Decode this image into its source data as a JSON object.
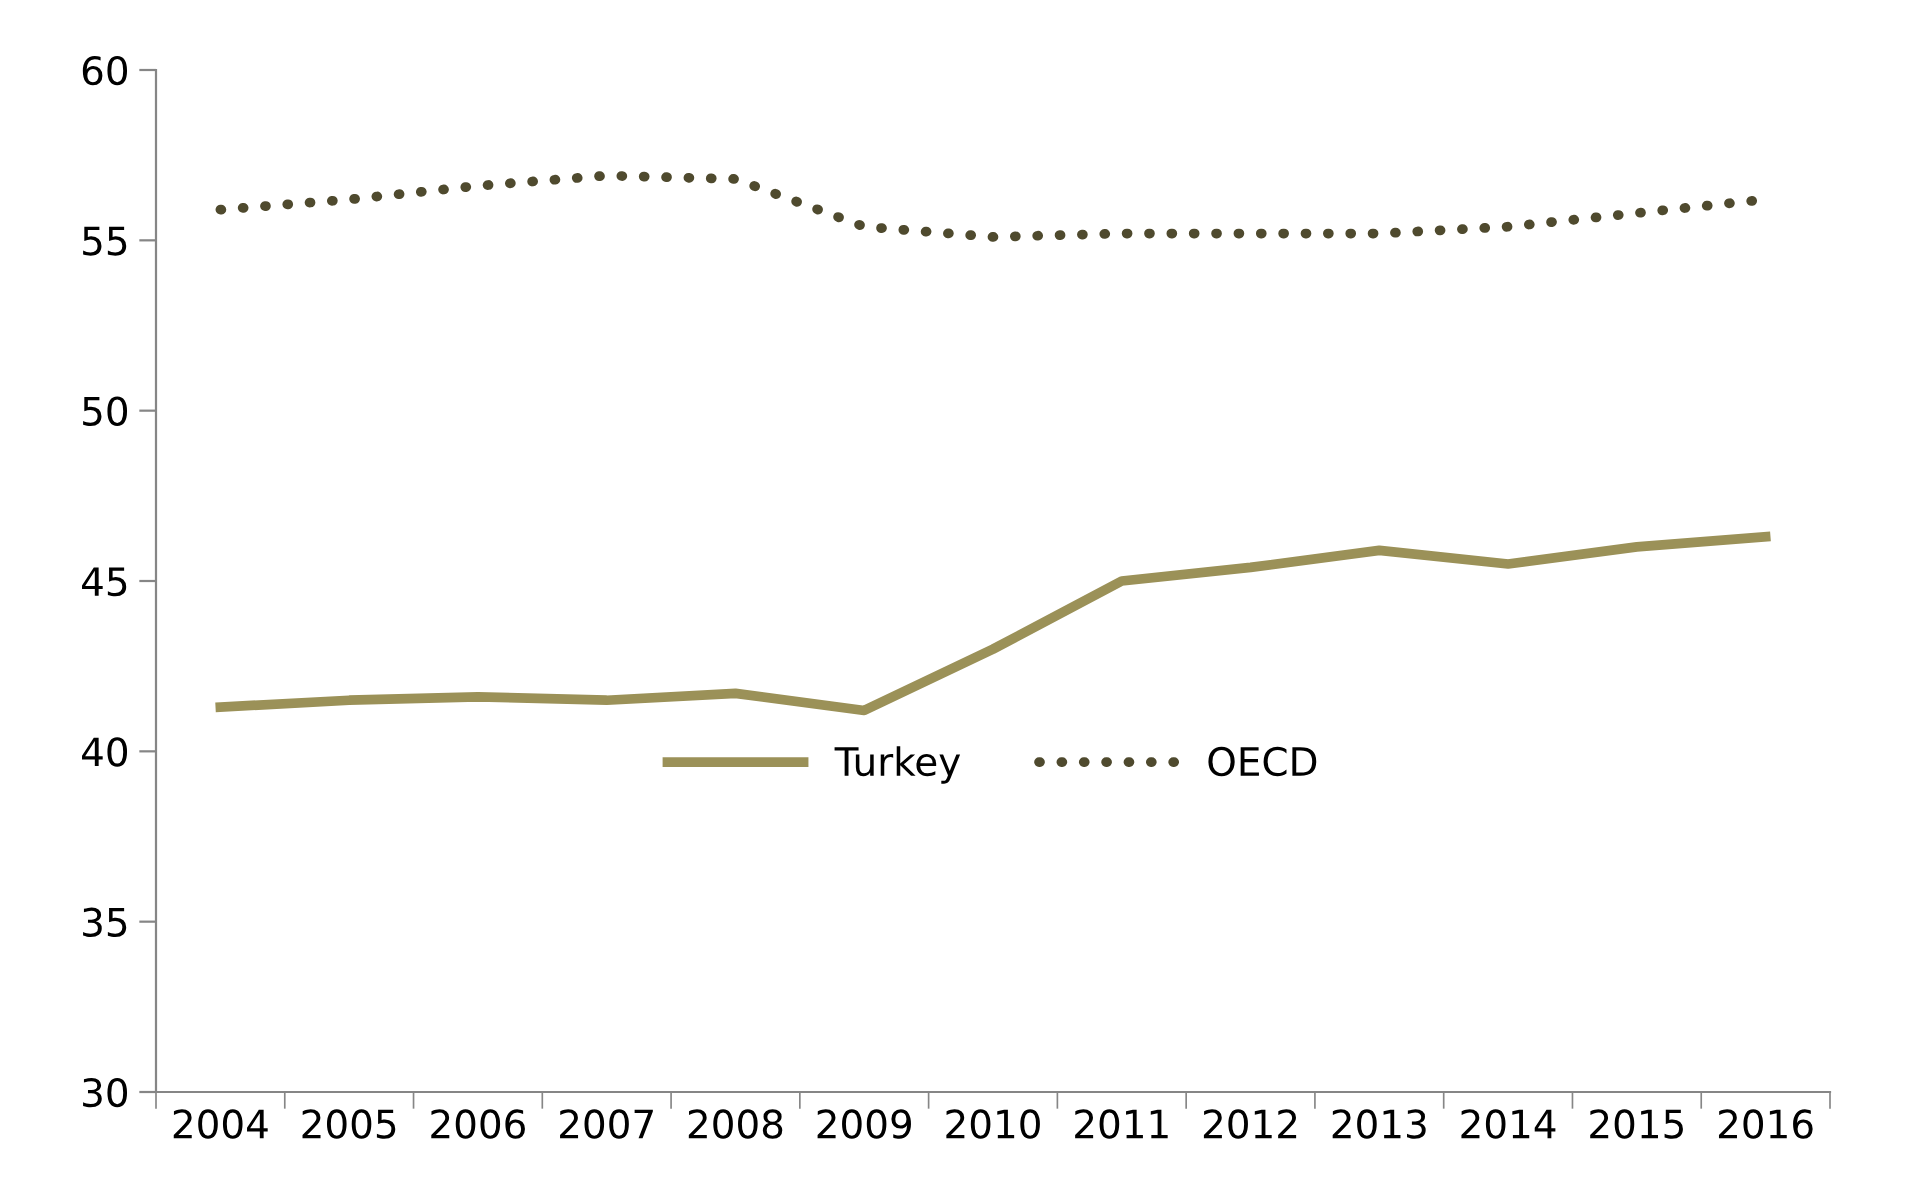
{
  "chart_data": {
    "type": "line",
    "categories": [
      "2004",
      "2005",
      "2006",
      "2007",
      "2008",
      "2009",
      "2010",
      "2011",
      "2012",
      "2013",
      "2014",
      "2015",
      "2016"
    ],
    "series": [
      {
        "name": "Turkey",
        "color": "#9b9158",
        "line_style": "solid",
        "values": [
          41.3,
          41.5,
          41.6,
          41.5,
          41.7,
          41.2,
          43.0,
          45.0,
          45.4,
          45.9,
          45.5,
          46.0,
          46.3
        ]
      },
      {
        "name": "OECD",
        "color": "#4f4a2e",
        "line_style": "dotted",
        "values": [
          55.9,
          56.2,
          56.6,
          56.9,
          56.8,
          55.4,
          55.1,
          55.2,
          55.2,
          55.2,
          55.4,
          55.8,
          56.2
        ]
      }
    ],
    "ylim": [
      30,
      60
    ],
    "yticks": [
      30,
      35,
      40,
      45,
      50,
      55,
      60
    ],
    "grid": false,
    "legend": "center"
  }
}
